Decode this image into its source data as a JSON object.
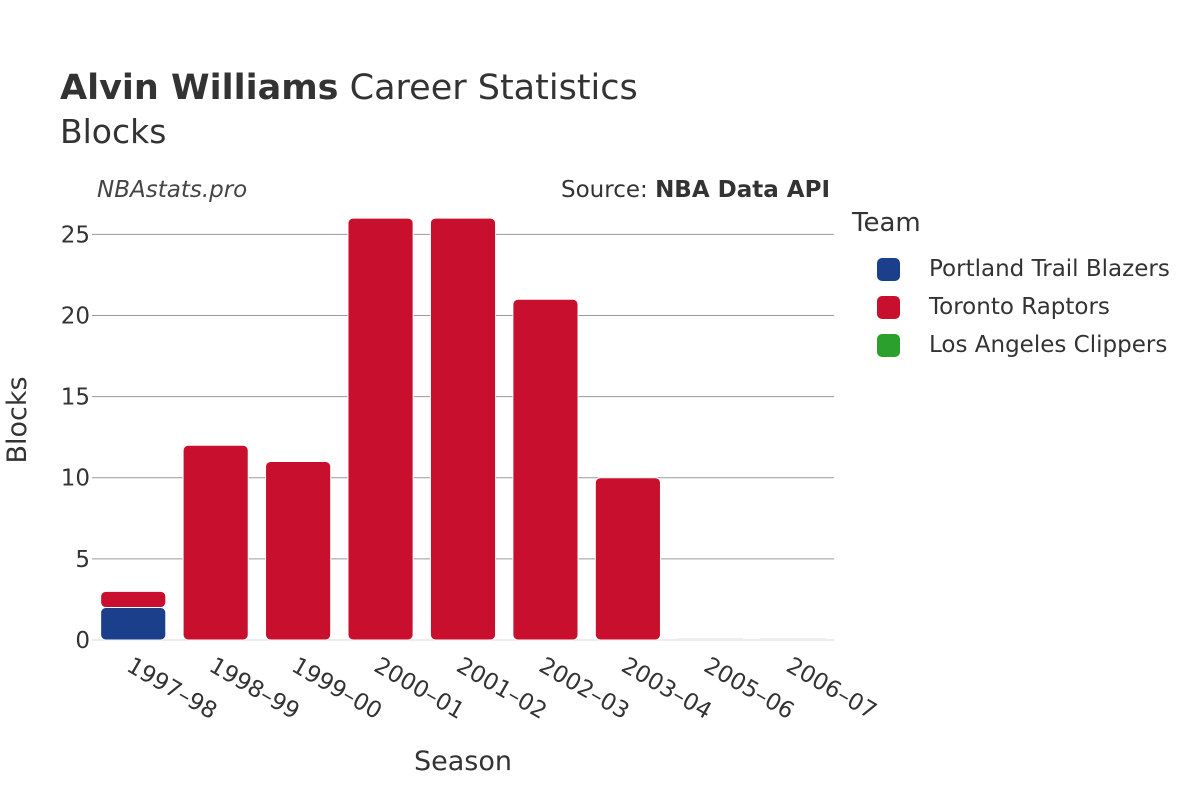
{
  "header": {
    "player_name": "Alvin Williams",
    "title_rest": "Career Statistics",
    "subtitle": "Blocks"
  },
  "watermark": "NBAstats.pro",
  "source": {
    "prefix": "Source: ",
    "name": "NBA Data API"
  },
  "legend": {
    "title": "Team",
    "items": [
      {
        "label": "Portland Trail Blazers",
        "color": "#1c3f8c"
      },
      {
        "label": "Toronto Raptors",
        "color": "#c8102e"
      },
      {
        "label": "Los Angeles Clippers",
        "color": "#2ca02c"
      }
    ]
  },
  "chart_data": {
    "type": "bar",
    "stacked": true,
    "title": "Alvin Williams Career Statistics",
    "subtitle": "Blocks",
    "xlabel": "Season",
    "ylabel": "Blocks",
    "ylim": [
      0,
      26.5
    ],
    "yticks": [
      0,
      5,
      10,
      15,
      20,
      25
    ],
    "grid": true,
    "legend_position": "right",
    "categories": [
      "1997–98",
      "1998–99",
      "1999–00",
      "2000–01",
      "2001–02",
      "2002–03",
      "2003–04",
      "2005–06",
      "2006–07"
    ],
    "series": [
      {
        "name": "Portland Trail Blazers",
        "color": "#1c3f8c",
        "values": [
          2,
          0,
          0,
          0,
          0,
          0,
          0,
          0,
          0
        ]
      },
      {
        "name": "Toronto Raptors",
        "color": "#c8102e",
        "values": [
          1,
          12,
          11,
          26,
          26,
          21,
          10,
          0,
          0
        ]
      },
      {
        "name": "Los Angeles Clippers",
        "color": "#2ca02c",
        "values": [
          0,
          0,
          0,
          0,
          0,
          0,
          0,
          0,
          0
        ]
      }
    ]
  }
}
